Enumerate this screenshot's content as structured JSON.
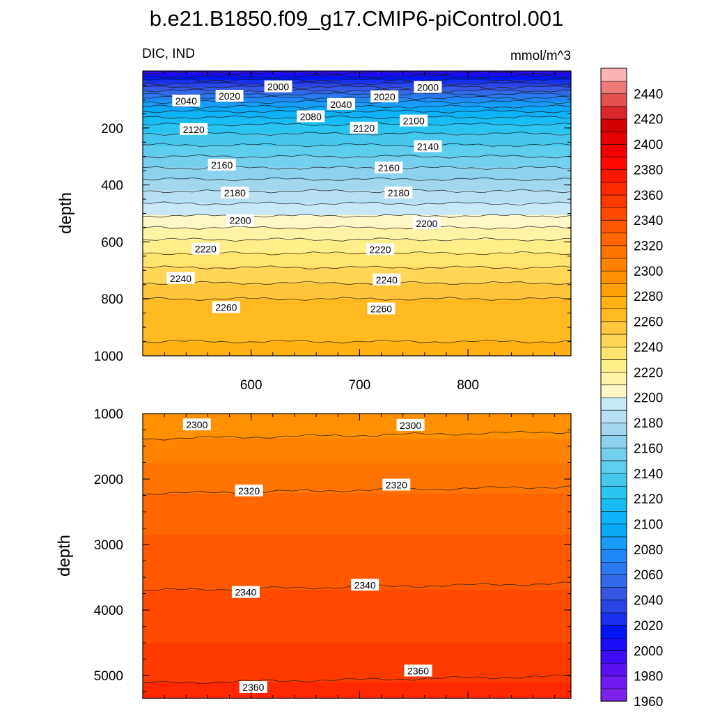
{
  "title": "b.e21.B1850.f09_g17.CMIP6-piControl.001",
  "chart_data": [
    {
      "type": "heatmap",
      "panel": "upper",
      "left_label": "DIC, IND",
      "right_label": "mmol/m^3",
      "ylabel": "depth",
      "xlabel": "",
      "xlim": [
        500,
        895
      ],
      "ylim": [
        1000,
        0
      ],
      "xticks": [
        600,
        700,
        800
      ],
      "xtick_labels": [
        "600",
        "700",
        "800"
      ],
      "yticks": [
        200,
        400,
        600,
        800,
        1000
      ],
      "ytick_labels": [
        "200",
        "400",
        "600",
        "800",
        "1000"
      ],
      "profile_depths": [
        0,
        50,
        100,
        150,
        200,
        300,
        400,
        500,
        600,
        700,
        800,
        900,
        1000
      ],
      "profile_values": [
        1995,
        2035,
        2075,
        2105,
        2125,
        2150,
        2175,
        2198,
        2222,
        2242,
        2260,
        2268,
        2272
      ],
      "contour_labels": [
        {
          "text": "2040",
          "x": 540,
          "depth": 105
        },
        {
          "text": "2020",
          "x": 580,
          "depth": 88
        },
        {
          "text": "2000",
          "x": 625,
          "depth": 55
        },
        {
          "text": "2080",
          "x": 655,
          "depth": 160
        },
        {
          "text": "2040",
          "x": 683,
          "depth": 117
        },
        {
          "text": "2020",
          "x": 723,
          "depth": 90
        },
        {
          "text": "2000",
          "x": 763,
          "depth": 57
        },
        {
          "text": "2100",
          "x": 750,
          "depth": 175
        },
        {
          "text": "2120",
          "x": 547,
          "depth": 205
        },
        {
          "text": "2120",
          "x": 704,
          "depth": 200
        },
        {
          "text": "2140",
          "x": 763,
          "depth": 265
        },
        {
          "text": "2160",
          "x": 573,
          "depth": 330
        },
        {
          "text": "2160",
          "x": 727,
          "depth": 340
        },
        {
          "text": "2180",
          "x": 585,
          "depth": 428
        },
        {
          "text": "2180",
          "x": 736,
          "depth": 428
        },
        {
          "text": "2200",
          "x": 590,
          "depth": 525
        },
        {
          "text": "2200",
          "x": 762,
          "depth": 535
        },
        {
          "text": "2220",
          "x": 558,
          "depth": 625
        },
        {
          "text": "2220",
          "x": 719,
          "depth": 627
        },
        {
          "text": "2240",
          "x": 535,
          "depth": 728
        },
        {
          "text": "2240",
          "x": 725,
          "depth": 733
        },
        {
          "text": "2260",
          "x": 577,
          "depth": 830
        },
        {
          "text": "2260",
          "x": 720,
          "depth": 835
        }
      ]
    },
    {
      "type": "heatmap",
      "panel": "lower",
      "ylabel": "depth",
      "xlim": [
        500,
        895
      ],
      "ylim": [
        5350,
        1000
      ],
      "yticks": [
        1000,
        2000,
        3000,
        4000,
        5000
      ],
      "ytick_labels": [
        "1000",
        "2000",
        "3000",
        "4000",
        "5000"
      ],
      "profile_depths": [
        1000,
        1500,
        2000,
        2500,
        3000,
        3500,
        4000,
        4500,
        5000,
        5350
      ],
      "profile_values": [
        2290,
        2303,
        2316,
        2325,
        2332,
        2338,
        2343,
        2350,
        2358,
        2364
      ],
      "contour_labels": [
        {
          "text": "2300",
          "x": 550,
          "depth": 1170
        },
        {
          "text": "2300",
          "x": 747,
          "depth": 1180
        },
        {
          "text": "2320",
          "x": 598,
          "depth": 2180
        },
        {
          "text": "2320",
          "x": 734,
          "depth": 2090
        },
        {
          "text": "2340",
          "x": 595,
          "depth": 3730
        },
        {
          "text": "2340",
          "x": 705,
          "depth": 3620
        },
        {
          "text": "2360",
          "x": 754,
          "depth": 4930
        },
        {
          "text": "2360",
          "x": 602,
          "depth": 5180
        }
      ]
    }
  ],
  "colorbar": {
    "levels": [
      1960,
      1970,
      1980,
      1990,
      2000,
      2010,
      2020,
      2030,
      2040,
      2050,
      2060,
      2070,
      2080,
      2090,
      2100,
      2110,
      2120,
      2130,
      2140,
      2150,
      2160,
      2170,
      2180,
      2190,
      2200,
      2210,
      2220,
      2230,
      2240,
      2250,
      2260,
      2270,
      2280,
      2290,
      2300,
      2310,
      2320,
      2330,
      2340,
      2350,
      2360,
      2370,
      2380,
      2390,
      2400,
      2410,
      2420,
      2430,
      2440,
      2450
    ],
    "labels": [
      "1960",
      "1980",
      "2000",
      "2020",
      "2040",
      "2060",
      "2080",
      "2100",
      "2120",
      "2140",
      "2160",
      "2180",
      "2200",
      "2220",
      "2240",
      "2260",
      "2280",
      "2300",
      "2320",
      "2340",
      "2360",
      "2380",
      "2400",
      "2420",
      "2440"
    ],
    "colors": [
      "#7A22E8",
      "#6F1AF0",
      "#5B12F2",
      "#3E0CF6",
      "#1A0CFA",
      "#0016F8",
      "#1730EC",
      "#2A45E6",
      "#3458E4",
      "#306AE8",
      "#2A78F0",
      "#2088F6",
      "#189CFA",
      "#0AAAF8",
      "#0EB2F6",
      "#16BCF2",
      "#2AC4F0",
      "#46C8EE",
      "#5ECDEE",
      "#74CFEE",
      "#8CD2EE",
      "#A2D8EE",
      "#B6E0F2",
      "#C8E8F6",
      "#FFF8C6",
      "#FFF3A6",
      "#FFEE8A",
      "#FFE46E",
      "#FFD656",
      "#FFC63C",
      "#FFBA22",
      "#FFB012",
      "#FFA00A",
      "#FF9000",
      "#FF8200",
      "#FF7400",
      "#FF6600",
      "#FF5800",
      "#FF4A00",
      "#FF3A00",
      "#FF2800",
      "#FF1800",
      "#FF0800",
      "#F20000",
      "#E20000",
      "#D20000",
      "#D8282A",
      "#E25050",
      "#EC7A7A",
      "#FBB4B4"
    ]
  }
}
